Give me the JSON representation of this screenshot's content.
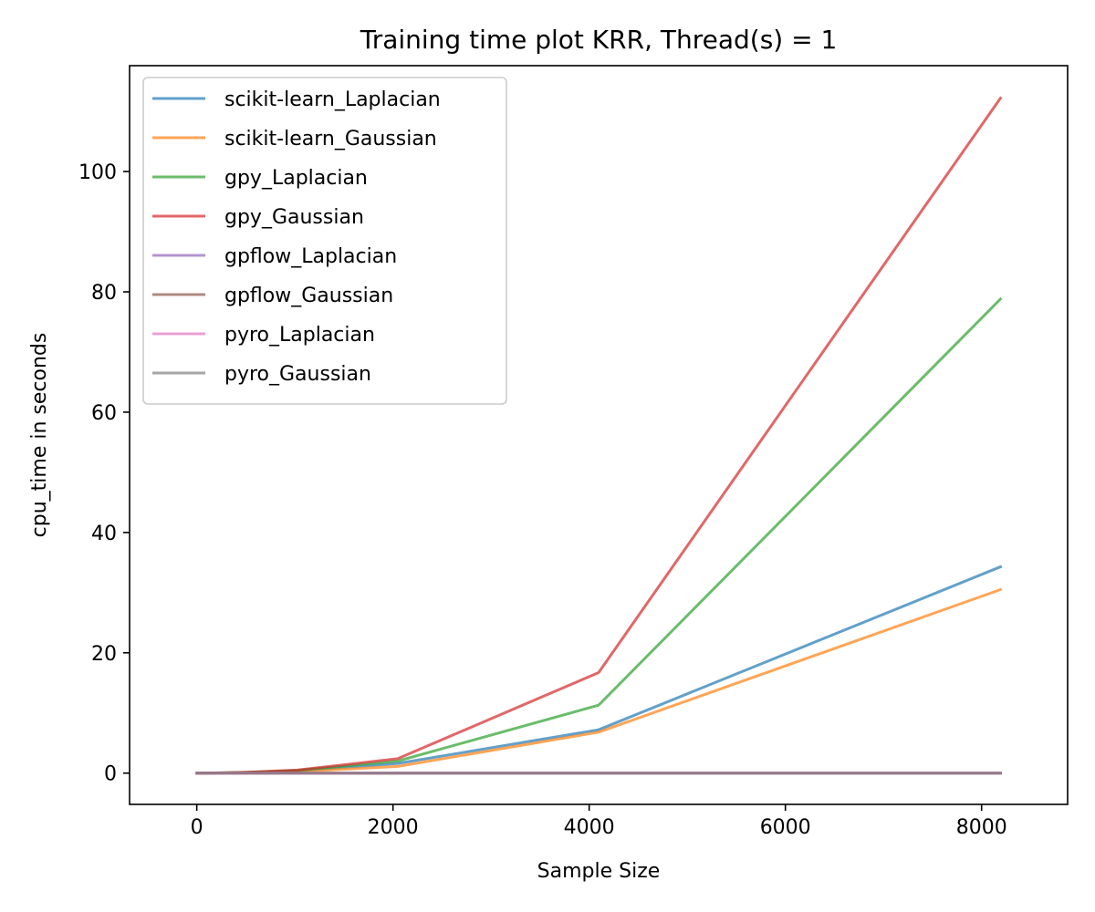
{
  "chart_data": {
    "type": "line",
    "title": "Training time plot KRR, Thread(s) = 1",
    "xlabel": "Sample Size",
    "ylabel": "cpu_time in seconds",
    "xlim": [
      -685,
      8877
    ],
    "ylim": [
      -5.2,
      117.6
    ],
    "xticks": [
      0,
      2000,
      4000,
      6000,
      8000
    ],
    "yticks": [
      0,
      20,
      40,
      60,
      80,
      100
    ],
    "grid": false,
    "legend_position": "upper-left",
    "x": [
      2,
      4,
      8,
      16,
      32,
      64,
      128,
      256,
      512,
      1024,
      2048,
      4096,
      8192
    ],
    "series": [
      {
        "name": "scikit-learn_Laplacian",
        "color": "#1f77b4",
        "values": [
          0.0,
          0.0,
          0.0,
          0.0,
          0.0,
          0.0,
          0.01,
          0.03,
          0.1,
          0.4,
          1.6,
          7.2,
          34.3
        ]
      },
      {
        "name": "scikit-learn_Gaussian",
        "color": "#ff7f0e",
        "values": [
          0.0,
          0.0,
          0.0,
          0.0,
          0.0,
          0.0,
          0.01,
          0.02,
          0.07,
          0.25,
          1.1,
          6.8,
          30.5
        ]
      },
      {
        "name": "gpy_Laplacian",
        "color": "#2ca02c",
        "values": [
          0.0,
          0.0,
          0.0,
          0.0,
          0.0,
          0.01,
          0.02,
          0.05,
          0.12,
          0.45,
          2.0,
          11.3,
          78.8
        ]
      },
      {
        "name": "gpy_Gaussian",
        "color": "#d62728",
        "values": [
          0.0,
          0.0,
          0.0,
          0.0,
          0.0,
          0.01,
          0.02,
          0.05,
          0.15,
          0.5,
          2.4,
          16.7,
          112.2
        ]
      },
      {
        "name": "gpflow_Laplacian",
        "color": "#9467bd",
        "values": [
          0.0,
          0.0,
          0.0,
          0.0,
          0.0,
          0.0,
          0.0,
          0.0,
          0.0,
          0.0,
          0.0,
          0.0,
          0.0
        ]
      },
      {
        "name": "gpflow_Gaussian",
        "color": "#8c564b",
        "values": [
          0.0,
          0.0,
          0.0,
          0.0,
          0.0,
          0.0,
          0.0,
          0.0,
          0.0,
          0.0,
          0.0,
          0.0,
          0.0
        ]
      },
      {
        "name": "pyro_Laplacian",
        "color": "#e377c2",
        "values": [
          0.0,
          0.0,
          0.0,
          0.0,
          0.0,
          0.0,
          0.0,
          0.0,
          0.0,
          0.0,
          0.0,
          0.0,
          0.0
        ]
      },
      {
        "name": "pyro_Gaussian",
        "color": "#7f7f7f",
        "values": [
          0.0,
          0.0,
          0.0,
          0.0,
          0.0,
          0.0,
          0.0,
          0.0,
          0.0,
          0.0,
          0.0,
          0.0,
          0.0
        ]
      }
    ]
  }
}
